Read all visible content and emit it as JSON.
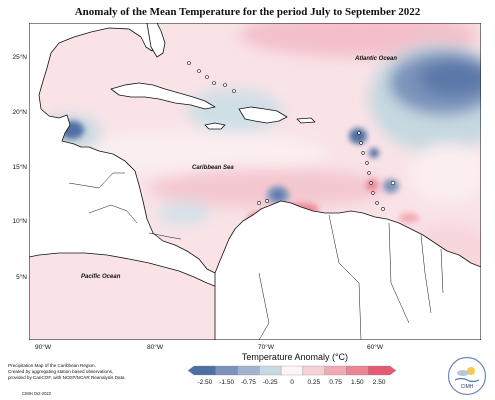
{
  "title": "Anomaly of the Mean Temperature for the period July to September 2022",
  "map": {
    "lat_ticks": [
      "25°N",
      "20°N",
      "15°N",
      "10°N",
      "5°N"
    ],
    "lon_ticks": [
      "90°W",
      "80°W",
      "70°W",
      "60°W"
    ],
    "labels": {
      "atlantic": "Atlantic Ocean",
      "caribbean": "Caribbean Sea",
      "pacific": "Pacific Ocean"
    }
  },
  "legend": {
    "title": "Temperature Anomaly (°C)",
    "values": [
      "-2.50",
      "-1.50",
      "-0.75",
      "-0.25",
      "0",
      "0.25",
      "0.75",
      "1.50",
      "2.50"
    ],
    "colors": [
      "#4f6ea3",
      "#7b93bb",
      "#9fb4cc",
      "#c6d8e0",
      "#fff3f3",
      "#f7d0d6",
      "#f2aab5",
      "#ec8596",
      "#e45b70"
    ]
  },
  "note": {
    "lines": [
      "Precipitation Map of the Caribbean Region.",
      "Created by aggregating station based observations,",
      "provided by CariCOF, with NCEP/NCAR Reanalysis Data."
    ],
    "credit": "CIMH Oct-2022"
  },
  "logo": {
    "text": "CIMH"
  }
}
